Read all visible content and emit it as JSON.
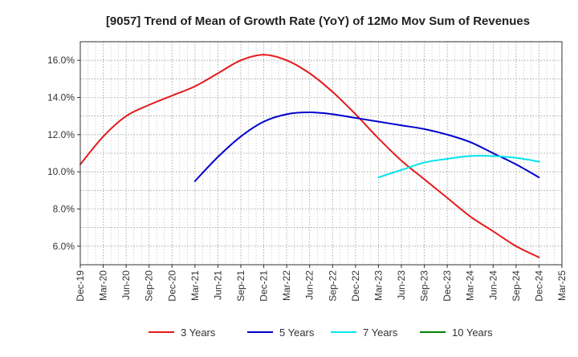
{
  "chart_data": {
    "type": "line",
    "title": "[9057]  Trend of Mean of Growth Rate (YoY) of 12Mo Mov Sum of Revenues",
    "xlabel": "",
    "ylabel": "",
    "ylim": [
      5.0,
      17.0
    ],
    "y_ticks": [
      6.0,
      8.0,
      10.0,
      12.0,
      14.0,
      16.0
    ],
    "y_tick_labels": [
      "6.0%",
      "8.0%",
      "10.0%",
      "12.0%",
      "14.0%",
      "16.0%"
    ],
    "x_tick_labels": [
      "Dec-19",
      "Mar-20",
      "Jun-20",
      "Sep-20",
      "Dec-20",
      "Mar-21",
      "Jun-21",
      "Sep-21",
      "Dec-21",
      "Mar-22",
      "Jun-22",
      "Sep-22",
      "Dec-22",
      "Mar-23",
      "Jun-23",
      "Sep-23",
      "Dec-23",
      "Mar-24",
      "Jun-24",
      "Sep-24",
      "Dec-24",
      "Mar-25"
    ],
    "grid": true,
    "legend_position": "bottom",
    "series": [
      {
        "name": "3 Years",
        "color": "#e41a1c",
        "x": [
          0,
          1,
          2,
          3,
          4,
          5,
          6,
          7,
          8,
          9,
          10,
          11,
          12,
          13,
          14,
          15,
          16,
          17,
          18,
          19,
          20
        ],
        "values": [
          10.4,
          11.9,
          13.0,
          13.6,
          14.1,
          14.6,
          15.3,
          16.0,
          16.3,
          16.0,
          15.3,
          14.3,
          13.1,
          11.8,
          10.6,
          9.6,
          8.6,
          7.6,
          6.8,
          6.0,
          5.4
        ]
      },
      {
        "name": "5 Years",
        "color": "#0000cc",
        "x": [
          5,
          6,
          7,
          8,
          9,
          10,
          11,
          12,
          13,
          14,
          15,
          16,
          17,
          18,
          19,
          20
        ],
        "values": [
          9.5,
          10.8,
          11.9,
          12.7,
          13.1,
          13.2,
          13.1,
          12.9,
          12.7,
          12.5,
          12.3,
          12.0,
          11.6,
          11.0,
          10.4,
          9.7
        ]
      },
      {
        "name": "7 Years",
        "color": "#00e5ee",
        "x": [
          13,
          14,
          15,
          16,
          17,
          18,
          19,
          20
        ],
        "values": [
          9.7,
          10.1,
          10.5,
          10.7,
          10.85,
          10.85,
          10.75,
          10.55
        ]
      },
      {
        "name": "10 Years",
        "color": "#008000",
        "x": [],
        "values": []
      }
    ]
  }
}
